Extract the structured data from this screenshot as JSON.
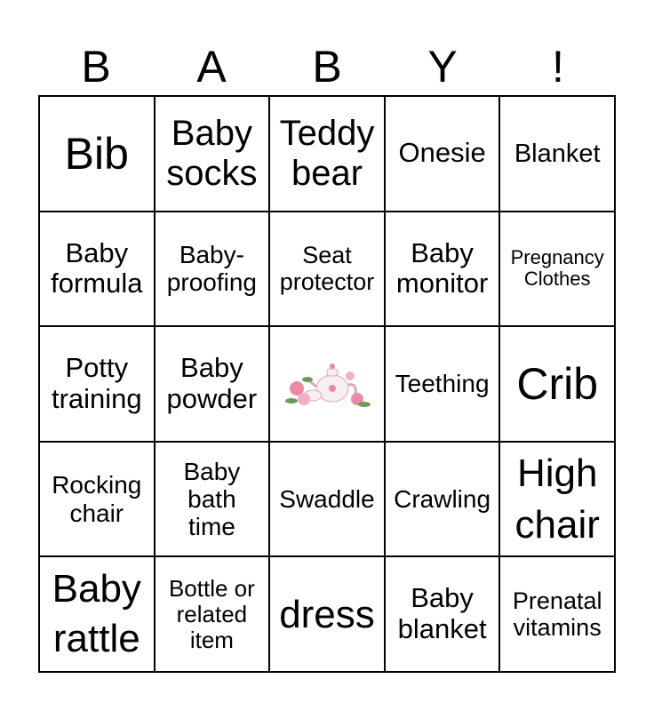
{
  "header": [
    "B",
    "A",
    "B",
    "Y",
    "!"
  ],
  "cells": [
    "Bib",
    "Baby socks",
    "Teddy bear",
    "Onesie",
    "Blanket",
    "Baby formula",
    "Baby-proofing",
    "Seat protector",
    "Baby monitor",
    "Pregnancy Clothes",
    "Potty training",
    "Baby powder",
    "",
    "Teething",
    "Crib",
    "Rocking chair",
    "Baby bath time",
    "Swaddle",
    "Crawling",
    "High chair",
    "Baby rattle",
    "Bottle or related item",
    "dress",
    "Baby blanket",
    "Prenatal vitamins"
  ],
  "center_image": "teapot-with-roses",
  "colors": {
    "rose": "#e98aa6",
    "leaf": "#6f9a5a"
  }
}
